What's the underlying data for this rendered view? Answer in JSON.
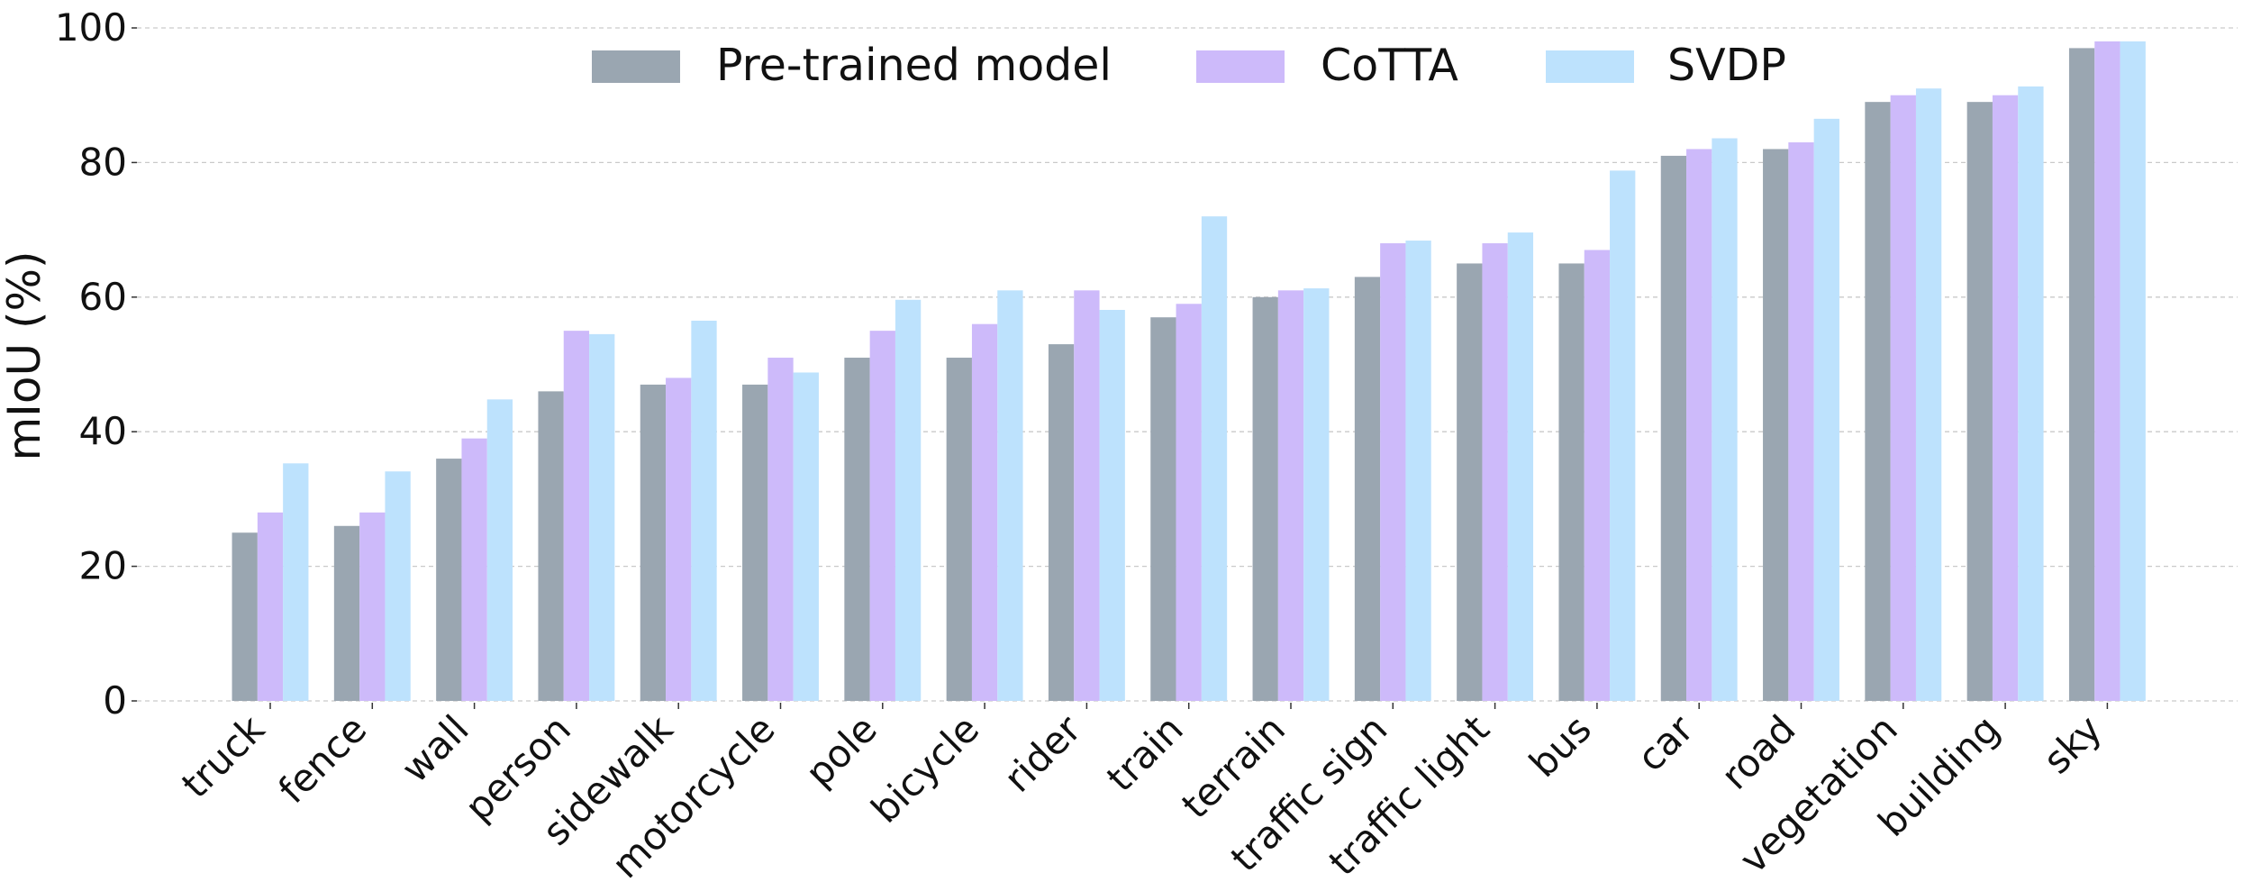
{
  "chart_data": {
    "type": "bar",
    "title": "",
    "xlabel": "",
    "ylabel": "mIoU (%)",
    "ylim": [
      0,
      100
    ],
    "yticks": [
      "0",
      "20",
      "40",
      "60",
      "80",
      "100"
    ],
    "grid": "horizontal dashed",
    "legend_position": "top-center",
    "categories": [
      "truck",
      "fence",
      "wall",
      "person",
      "sidewalk",
      "motorcycle",
      "pole",
      "bicycle",
      "rider",
      "train",
      "terrain",
      "traffic sign",
      "traffic light",
      "bus",
      "car",
      "road",
      "vegetation",
      "building",
      "sky"
    ],
    "series": [
      {
        "name": "Pre-trained model",
        "color": "#9aa6b1",
        "values": [
          25,
          26,
          36,
          46,
          47,
          47,
          51,
          51,
          53,
          57,
          60,
          63,
          65,
          65,
          81,
          82,
          89,
          89,
          97
        ]
      },
      {
        "name": "CoTTA",
        "color": "#cdbafa",
        "values": [
          28,
          28,
          39,
          55,
          48,
          51,
          55,
          56,
          61,
          59,
          61,
          68,
          68,
          67,
          82,
          83,
          90,
          90,
          98
        ]
      },
      {
        "name": "SVDP",
        "color": "#bde2fd",
        "values": [
          35.3,
          34.1,
          44.8,
          54.5,
          56.5,
          48.8,
          59.6,
          61.0,
          58.1,
          72.0,
          61.3,
          68.4,
          69.6,
          78.8,
          83.6,
          86.5,
          91.0,
          91.3,
          98.0
        ]
      }
    ]
  }
}
